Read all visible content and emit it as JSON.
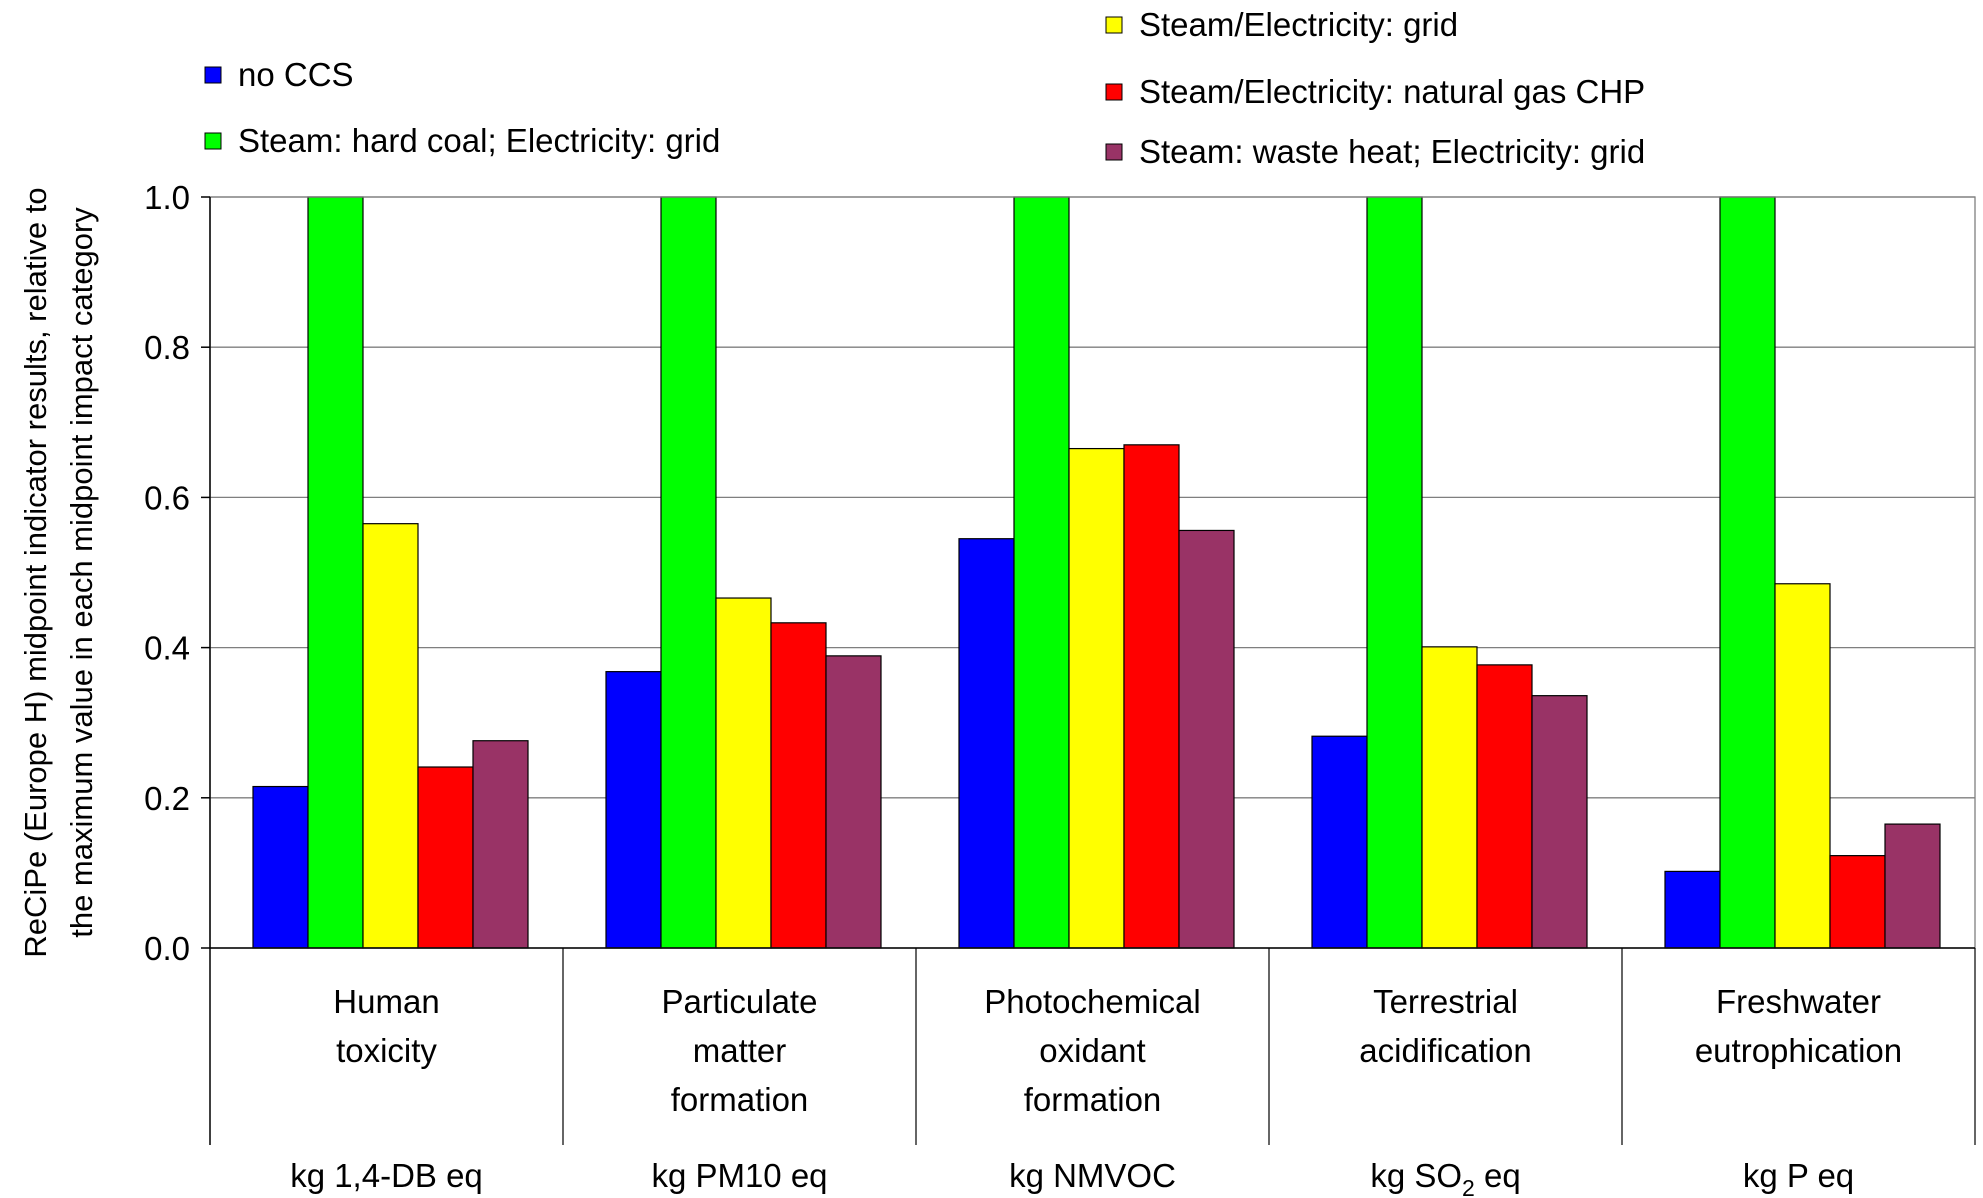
{
  "chart_data": {
    "type": "bar",
    "top_caption_fragment": "",
    "ylabel_lines": [
      "ReCiPe (Europe H) midpoint indicator results, relative to",
      "the maximum value in each midpoint impact category"
    ],
    "ylim": [
      0,
      1
    ],
    "yticks": [
      "0.0",
      "0.2",
      "0.4",
      "0.6",
      "0.8",
      "1.0"
    ],
    "grid": true,
    "categories": [
      {
        "label_lines": [
          "Human",
          "toxicity"
        ],
        "unit": "kg 1,4-DB eq",
        "unit_sub": "",
        "unit_after": ""
      },
      {
        "label_lines": [
          "Particulate",
          "matter",
          "formation"
        ],
        "unit": "kg PM10 eq",
        "unit_sub": "",
        "unit_after": ""
      },
      {
        "label_lines": [
          "Photochemical",
          "oxidant",
          "formation"
        ],
        "unit": "kg NMVOC",
        "unit_sub": "",
        "unit_after": ""
      },
      {
        "label_lines": [
          "Terrestrial",
          "acidification"
        ],
        "unit": "kg SO",
        "unit_sub": "2",
        "unit_after": " eq"
      },
      {
        "label_lines": [
          "Freshwater",
          "eutrophication"
        ],
        "unit": "kg P eq",
        "unit_sub": "",
        "unit_after": ""
      }
    ],
    "series": [
      {
        "name": "no CCS",
        "color": "#0000FF",
        "values": [
          0.215,
          0.368,
          0.545,
          0.282,
          0.102
        ]
      },
      {
        "name": "Steam: hard coal; Electricity: grid",
        "color": "#00FF00",
        "values": [
          1.0,
          1.0,
          1.0,
          1.0,
          1.0
        ]
      },
      {
        "name": "Steam/Electricity: grid",
        "color": "#FFFF00",
        "values": [
          0.565,
          0.466,
          0.665,
          0.401,
          0.485
        ]
      },
      {
        "name": "Steam/Electricity: natural gas CHP",
        "color": "#FF0000",
        "values": [
          0.241,
          0.433,
          0.67,
          0.377,
          0.123
        ]
      },
      {
        "name": "Steam: waste heat; Electricity: grid",
        "color": "#993366",
        "values": [
          0.276,
          0.389,
          0.556,
          0.336,
          0.165
        ]
      }
    ],
    "legend_placement": "top"
  }
}
